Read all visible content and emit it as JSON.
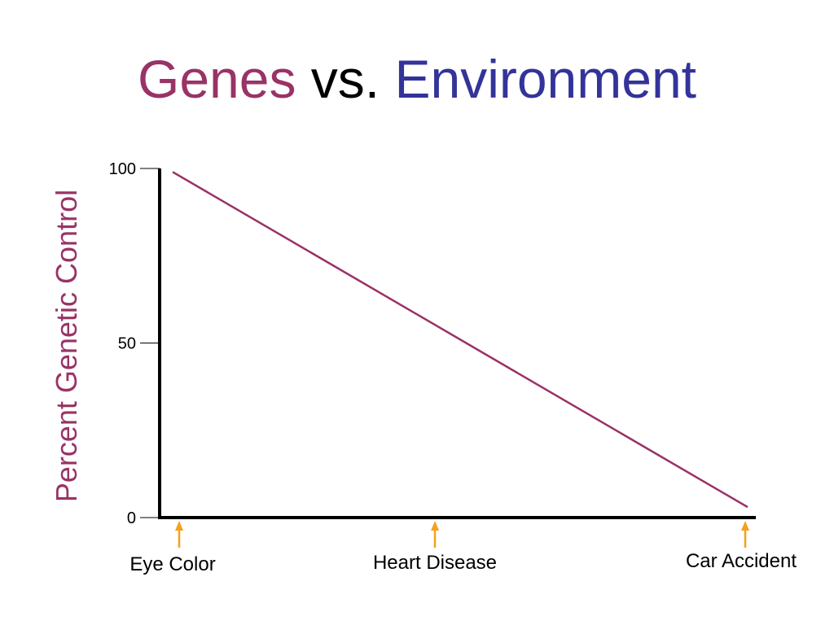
{
  "slide": {
    "title_part1": "Genes",
    "title_part2": "vs.",
    "title_part3": "Environment"
  },
  "colors": {
    "genes": "#993366",
    "environment": "#333399",
    "line": "#993366",
    "arrow": "#f4a11d",
    "axis": "#000000"
  },
  "chart_data": {
    "type": "line",
    "ylabel": "Percent Genetic Control",
    "xlabel": "",
    "ylim": [
      0,
      100
    ],
    "yticks": [
      0,
      50,
      100
    ],
    "ytick_labels": [
      "0",
      "50",
      "100"
    ],
    "categories": [
      "Eye Color",
      "Heart Disease",
      "Car Accident"
    ],
    "series": [
      {
        "x": [
          0,
          2
        ],
        "values": [
          99,
          3
        ]
      }
    ],
    "grid": false,
    "legend": "none",
    "category_markers": "arrow-up"
  }
}
